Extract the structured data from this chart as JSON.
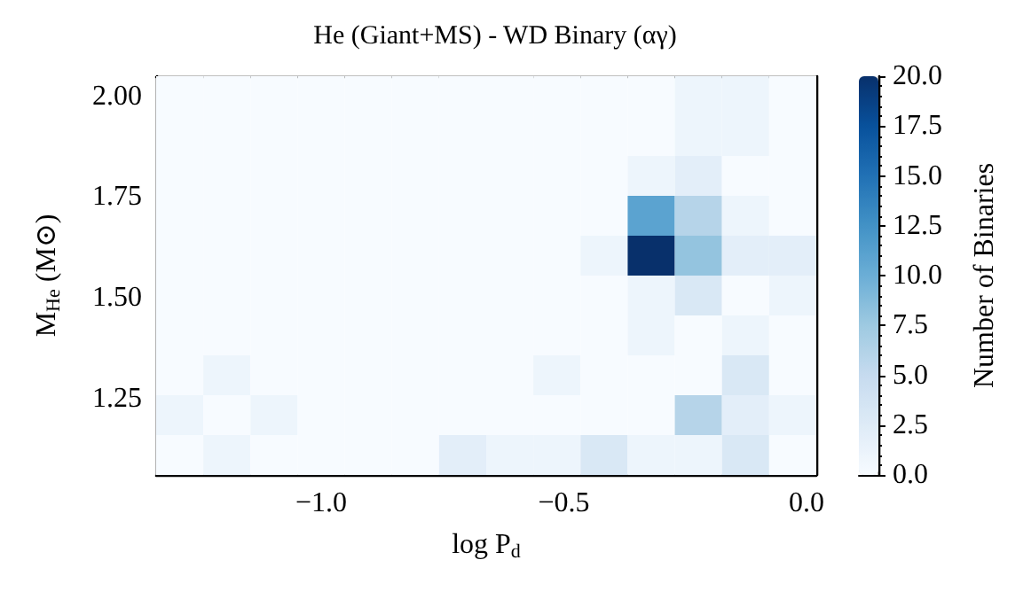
{
  "chart_data": {
    "type": "heatmap",
    "title": "He (Giant+MS) - WD Binary (αγ)",
    "xlabel": "log P$_{d}$",
    "ylabel": "M$_{He}$ (M⊙)",
    "clabel": "Number of Binaries",
    "xlim": [
      -1.34,
      0.02
    ],
    "ylim": [
      1.06,
      2.05
    ],
    "xticks": [
      {
        "value": -1,
        "label": "−1.0"
      },
      {
        "value": -0.5,
        "label": "−0.5"
      },
      {
        "value": 0,
        "label": "0.0"
      }
    ],
    "yticks": [
      {
        "value": 1.25,
        "label": "1.25"
      },
      {
        "value": 1.5,
        "label": "1.50"
      },
      {
        "value": 1.75,
        "label": "1.75"
      },
      {
        "value": 2,
        "label": "2.00"
      }
    ],
    "clim": [
      0,
      20
    ],
    "cticks": [
      {
        "value": 0,
        "label": "0.0"
      },
      {
        "value": 2.5,
        "label": "2.5"
      },
      {
        "value": 5,
        "label": "5.0"
      },
      {
        "value": 7.5,
        "label": "7.5"
      },
      {
        "value": 10,
        "label": "10.0"
      },
      {
        "value": 12.5,
        "label": "12.5"
      },
      {
        "value": 15,
        "label": "15.0"
      },
      {
        "value": 17.5,
        "label": "17.5"
      },
      {
        "value": 20,
        "label": "20.0"
      }
    ],
    "cells": [
      [
        0,
        0,
        0,
        0,
        0,
        0,
        0,
        0,
        0,
        0,
        0,
        1,
        1,
        0
      ],
      [
        0,
        0,
        0,
        0,
        0,
        0,
        0,
        0,
        0,
        0,
        0,
        1,
        1,
        0
      ],
      [
        0,
        0,
        0,
        0,
        0,
        0,
        0,
        0,
        0,
        0,
        1,
        2,
        0,
        0
      ],
      [
        0,
        0,
        0,
        0,
        0,
        0,
        0,
        0,
        0,
        0,
        11,
        6,
        1,
        0
      ],
      [
        0,
        0,
        0,
        0,
        0,
        0,
        0,
        0,
        0,
        1,
        20,
        8,
        2,
        2
      ],
      [
        0,
        0,
        0,
        0,
        0,
        0,
        0,
        0,
        0,
        0,
        1,
        3,
        0,
        1
      ],
      [
        0,
        0,
        0,
        0,
        0,
        0,
        0,
        0,
        0,
        0,
        1,
        0,
        1,
        0
      ],
      [
        0,
        1,
        0,
        0,
        0,
        0,
        0,
        0,
        1,
        0,
        0,
        0,
        3,
        0
      ],
      [
        1,
        0,
        1,
        0,
        0,
        0,
        0,
        0,
        0,
        0,
        0,
        6,
        2,
        1
      ],
      [
        0,
        1,
        0,
        0,
        0,
        0,
        2,
        1,
        1,
        3,
        1,
        1,
        3,
        0
      ]
    ]
  }
}
